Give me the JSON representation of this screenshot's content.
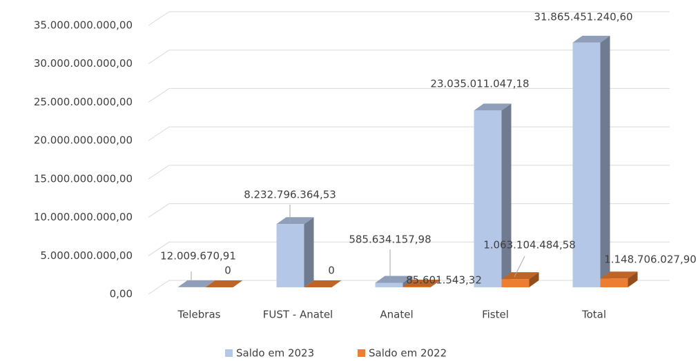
{
  "chart_data": {
    "type": "bar3d",
    "categories": [
      "Telebras",
      "FUST - Anatel",
      "Anatel",
      "Fistel",
      "Total"
    ],
    "series": [
      {
        "name": "Saldo em 2023",
        "color": "#b4c7e7",
        "values": [
          12009670.91,
          8232796364.53,
          585634157.98,
          23035011047.18,
          31865451240.6
        ],
        "value_labels": [
          "12.009.670,91",
          "8.232.796.364,53",
          "585.634.157,98",
          "23.035.011.047,18",
          "31.865.451.240,60"
        ]
      },
      {
        "name": "Saldo em 2022",
        "color": "#ed7d31",
        "values": [
          0,
          0,
          85601543.32,
          1063104484.58,
          1148706027.9
        ],
        "value_labels": [
          "0",
          "0",
          "85.601.543,32",
          "1.063.104.484,58",
          "1.148.706.027,90"
        ]
      }
    ],
    "ylim": [
      0,
      35000000000
    ],
    "yticks": [
      {
        "value": 0,
        "label": "0,00"
      },
      {
        "value": 5000000000,
        "label": "5.000.000.000,00"
      },
      {
        "value": 10000000000,
        "label": "10.000.000.000,00"
      },
      {
        "value": 15000000000,
        "label": "15.000.000.000,00"
      },
      {
        "value": 20000000000,
        "label": "20.000.000.000,00"
      },
      {
        "value": 25000000000,
        "label": "25.000.000.000,00"
      },
      {
        "value": 30000000000,
        "label": "30.000.000.000,00"
      },
      {
        "value": 35000000000,
        "label": "35.000.000.000,00"
      }
    ],
    "grid": true,
    "legend": "bottom"
  }
}
